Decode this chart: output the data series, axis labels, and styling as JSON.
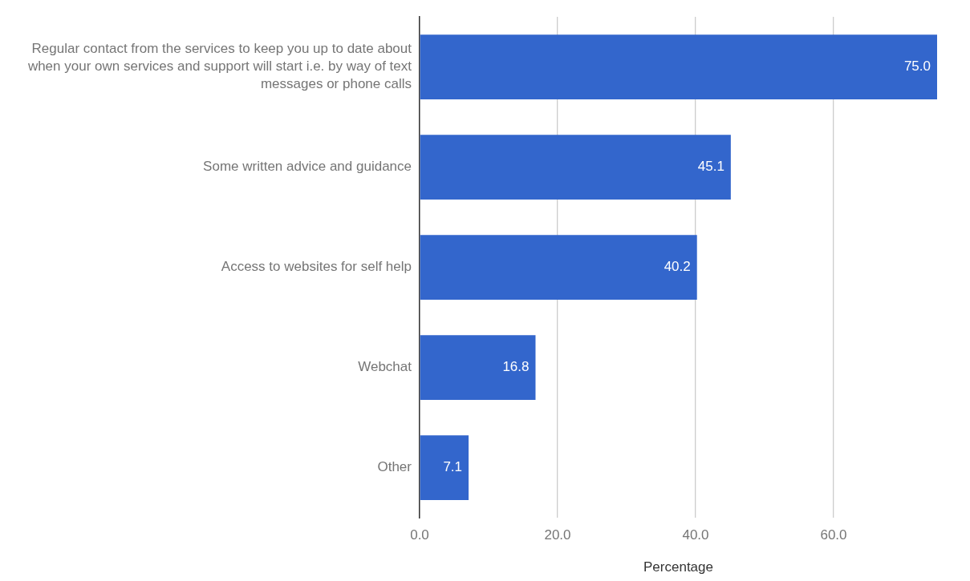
{
  "chart_data": {
    "type": "bar",
    "orientation": "horizontal",
    "xlabel": "Percentage",
    "categories": [
      "Regular contact from the services to keep you up to date about when your own services and support will start i.e. by way of text messages or phone calls",
      "Some written advice and guidance",
      "Access to websites for self help",
      "Webchat",
      "Other"
    ],
    "values": [
      75.0,
      45.1,
      40.2,
      16.8,
      7.1
    ],
    "color": "#3366cc",
    "xlim": [
      0,
      75
    ],
    "xticks": [
      {
        "value": 0,
        "label": "0.0"
      },
      {
        "value": 20,
        "label": "20.0"
      },
      {
        "value": 40,
        "label": "40.0"
      },
      {
        "value": 60,
        "label": "60.0"
      }
    ],
    "value_labels": [
      "75.0",
      "45.1",
      "40.2",
      "16.8",
      "7.1"
    ],
    "grid": "x",
    "legend": false
  }
}
